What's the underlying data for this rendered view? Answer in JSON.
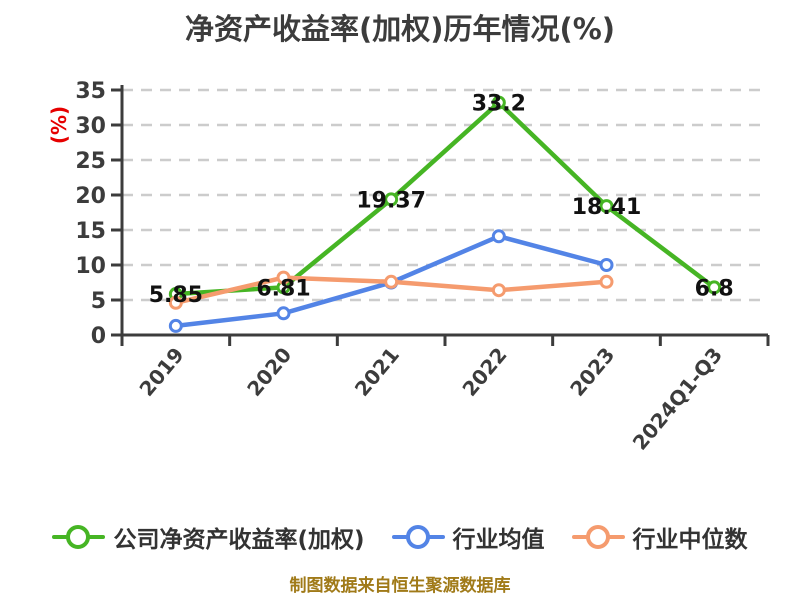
{
  "title": "净资产收益率(加权)历年情况(%)",
  "source_note": "制图数据来自恒生聚源数据库",
  "colors": {
    "title_text": "#3C3C3C",
    "axis": "#3C3C3C",
    "gridline": "#CCCCCC",
    "tick_label": "#3C3C3C",
    "data_label": "#111111",
    "y_axis_label": "#E60000",
    "legend_text": "#333333",
    "source_note": "#A07A18",
    "background": "#FFFFFF",
    "series_company": "#46B524",
    "series_industry_mean": "#5384E6",
    "series_industry_median": "#F59B6E"
  },
  "chart_data": {
    "type": "line",
    "title": "净资产收益率(加权)历年情况(%)",
    "xlabel": "",
    "ylabel": "(%)",
    "ylim": [
      0,
      35
    ],
    "ytick_step": 5,
    "yticks": [
      0,
      5,
      10,
      15,
      20,
      25,
      30,
      35
    ],
    "grid": "horizontal-dashed",
    "legend_position": "bottom",
    "categories": [
      "2019",
      "2020",
      "2021",
      "2022",
      "2023",
      "2024Q1-Q3"
    ],
    "series": [
      {
        "key": "company-roe",
        "name": "公司净资产收益率(加权)",
        "color": "#46B524",
        "values": [
          5.85,
          6.81,
          19.37,
          33.2,
          18.41,
          6.8
        ],
        "labels": [
          "5.85",
          "6.81",
          "19.37",
          "33.2",
          "18.41",
          "6.8"
        ]
      },
      {
        "key": "industry-mean",
        "name": "行业均值",
        "color": "#5384E6",
        "values": [
          1.3,
          3.1,
          7.5,
          14.1,
          10.0,
          null
        ],
        "labels": null
      },
      {
        "key": "industry-median",
        "name": "行业中位数",
        "color": "#F59B6E",
        "values": [
          4.6,
          8.2,
          7.6,
          6.4,
          7.6,
          null
        ],
        "labels": null
      }
    ]
  }
}
